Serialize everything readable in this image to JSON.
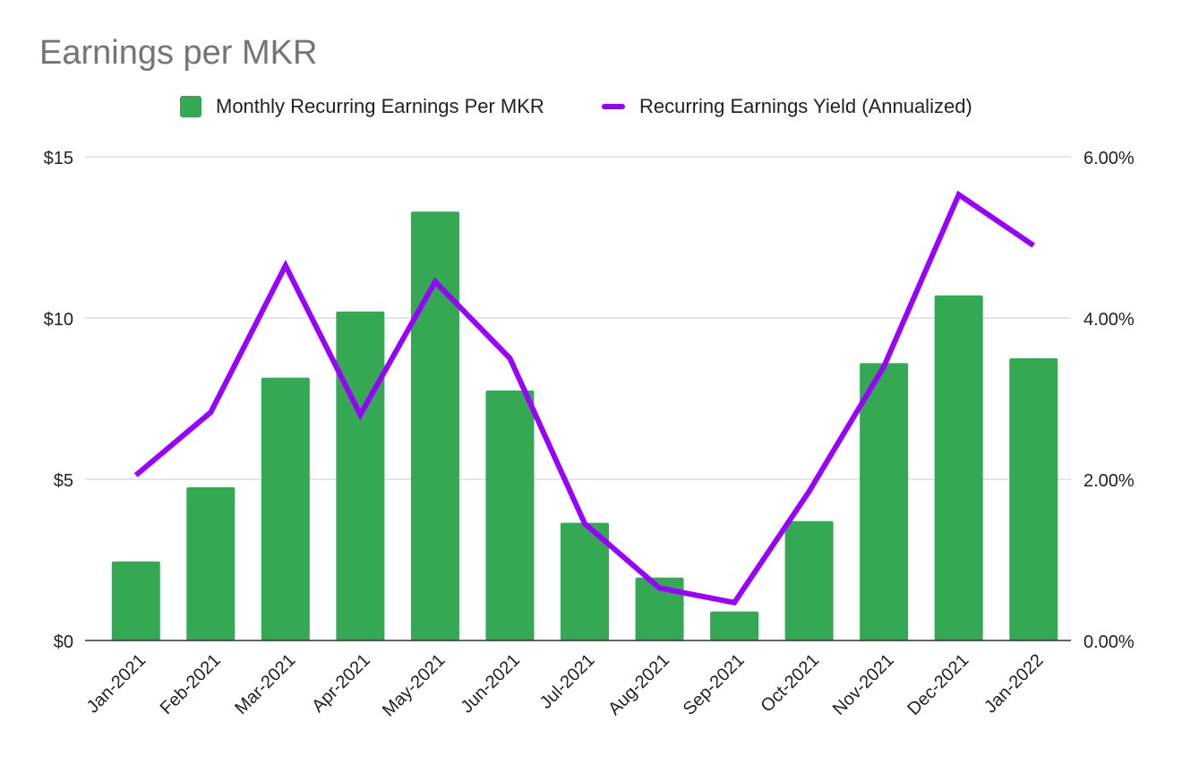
{
  "chart_data": {
    "type": "bar",
    "title": "Earnings per MKR",
    "categories": [
      "Jan-2021",
      "Feb-2021",
      "Mar-2021",
      "Apr-2021",
      "May-2021",
      "Jun-2021",
      "Jul-2021",
      "Aug-2021",
      "Sep-2021",
      "Oct-2021",
      "Nov-2021",
      "Dec-2021",
      "Jan-2022"
    ],
    "series": [
      {
        "name": "Monthly Recurring Earnings Per MKR",
        "type": "bar",
        "axis": "left",
        "color": "#34a853",
        "values": [
          2.45,
          4.75,
          8.15,
          10.2,
          13.3,
          7.75,
          3.65,
          1.95,
          0.9,
          3.7,
          8.6,
          10.7,
          8.75
        ]
      },
      {
        "name": "Recurring Earnings Yield (Annualized)",
        "type": "line",
        "axis": "right",
        "color": "#9900ff",
        "values": [
          2.05,
          2.83,
          4.65,
          2.8,
          4.45,
          3.5,
          1.45,
          0.65,
          0.47,
          1.85,
          3.4,
          5.53,
          4.9
        ]
      }
    ],
    "left_axis": {
      "ylim": [
        0,
        15
      ],
      "ticks": [
        0,
        5,
        10,
        15
      ],
      "tick_labels": [
        "$0",
        "$5",
        "$10",
        "$15"
      ]
    },
    "right_axis": {
      "ylim": [
        0,
        6
      ],
      "ticks": [
        0,
        2,
        4,
        6
      ],
      "tick_labels": [
        "0.00%",
        "2.00%",
        "4.00%",
        "6.00%"
      ]
    },
    "grid": true,
    "legend_position": "top-center"
  }
}
